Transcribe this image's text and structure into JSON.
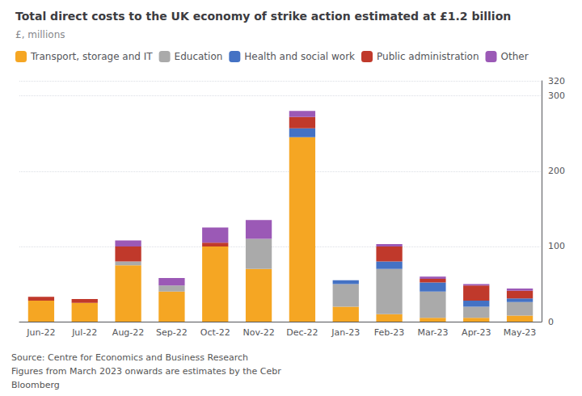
{
  "chart_data": {
    "type": "bar",
    "title": "Total direct costs to the UK economy of strike action estimated at £1.2 billion",
    "subtitle": "£, millions",
    "categories": [
      "Jun-22",
      "Jul-22",
      "Aug-22",
      "Sep-22",
      "Oct-22",
      "Nov-22",
      "Dec-22",
      "Jan-23",
      "Feb-23",
      "Mar-23",
      "Apr-23",
      "May-23"
    ],
    "series": [
      {
        "name": "Transport, storage and IT",
        "color": "#F5A623",
        "values": [
          28,
          25,
          75,
          40,
          100,
          70,
          245,
          20,
          10,
          5,
          5,
          8
        ]
      },
      {
        "name": "Education",
        "color": "#AAAAAA",
        "values": [
          0,
          0,
          5,
          8,
          0,
          40,
          0,
          30,
          60,
          35,
          15,
          18
        ]
      },
      {
        "name": "Health and social work",
        "color": "#4472C4",
        "values": [
          0,
          0,
          0,
          0,
          0,
          0,
          12,
          5,
          10,
          12,
          8,
          5
        ]
      },
      {
        "name": "Public administration",
        "color": "#C0392B",
        "values": [
          5,
          5,
          20,
          0,
          5,
          0,
          15,
          0,
          20,
          5,
          20,
          10
        ]
      },
      {
        "name": "Other",
        "color": "#9B59B6",
        "values": [
          0,
          0,
          8,
          10,
          20,
          25,
          8,
          0,
          3,
          3,
          2,
          3
        ]
      }
    ],
    "stacked": true,
    "ylim": [
      0,
      320
    ],
    "yticks": [
      0,
      100,
      200,
      300
    ],
    "grid": true,
    "legend": "upper left",
    "annotations": [
      "Source: Centre for Economics and Business Research",
      "Figures from March 2023 onwards are estimates by the Cebr",
      "Bloomberg"
    ]
  }
}
